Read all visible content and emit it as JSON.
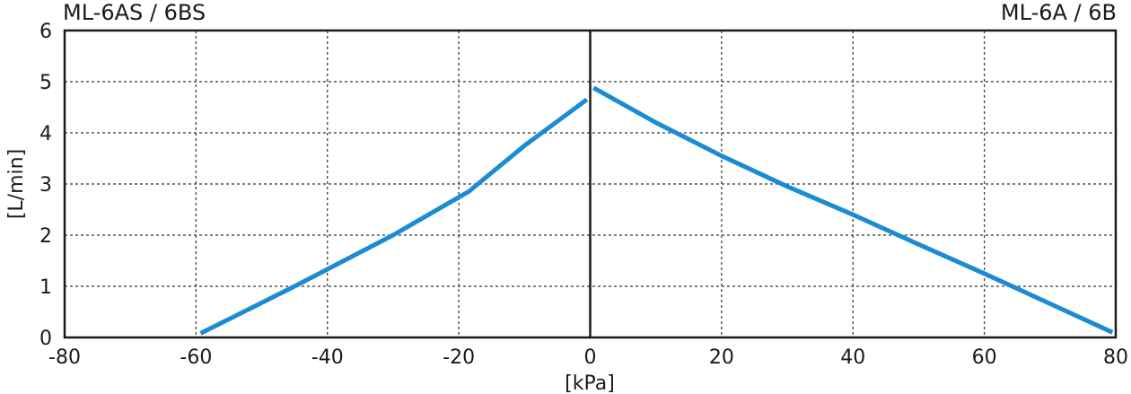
{
  "chart_data": {
    "type": "line",
    "left_title": "ML-6AS / 6BS",
    "right_title": "ML-6A / 6B",
    "xlabel": "[kPa]",
    "ylabel": "[L/min]",
    "xlim": [
      -80,
      80
    ],
    "ylim": [
      0,
      6
    ],
    "xticks": [
      -80,
      -60,
      -40,
      -20,
      0,
      20,
      40,
      60,
      80
    ],
    "yticks": [
      0,
      1,
      2,
      3,
      4,
      5,
      6
    ],
    "grid": true,
    "line_color": "#1b8bd4",
    "series": [
      {
        "x": [
          -59.3,
          -45,
          -30,
          -18.5,
          -10,
          -0.5
        ],
        "y": [
          0.08,
          1.0,
          2.0,
          2.85,
          3.75,
          4.65
        ]
      },
      {
        "x": [
          0.5,
          10,
          20,
          30,
          40,
          50,
          60,
          70,
          79.5
        ],
        "y": [
          4.88,
          4.2,
          3.55,
          2.95,
          2.4,
          1.82,
          1.25,
          0.66,
          0.1
        ]
      }
    ]
  }
}
